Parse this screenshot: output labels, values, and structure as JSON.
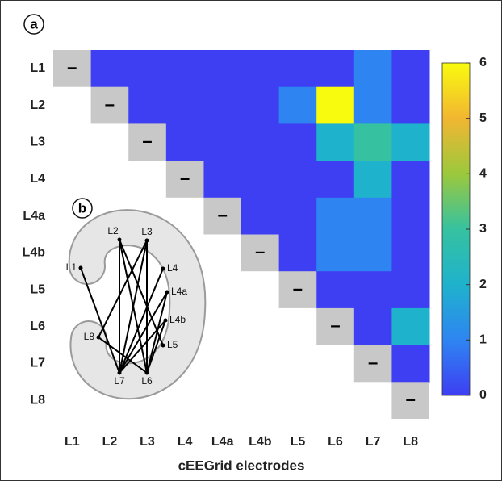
{
  "chart_data": {
    "type": "heatmap",
    "panel_label": "a",
    "inset_label": "b",
    "categories": [
      "L1",
      "L2",
      "L3",
      "L4",
      "L4a",
      "L4b",
      "L5",
      "L6",
      "L7",
      "L8"
    ],
    "xlabel": "cEEGrid electrodes",
    "diagonal_label": "–",
    "values": [
      [
        null,
        0,
        0,
        0,
        0,
        0,
        0,
        0,
        1,
        0
      ],
      [
        null,
        null,
        0,
        0,
        0,
        0,
        1,
        6,
        1,
        0
      ],
      [
        null,
        null,
        null,
        0,
        0,
        0,
        0,
        2,
        3,
        2
      ],
      [
        null,
        null,
        null,
        null,
        0,
        0,
        0,
        0,
        2,
        0
      ],
      [
        null,
        null,
        null,
        null,
        null,
        0,
        0,
        1,
        1,
        0
      ],
      [
        null,
        null,
        null,
        null,
        null,
        null,
        0,
        1,
        1,
        0
      ],
      [
        null,
        null,
        null,
        null,
        null,
        null,
        null,
        0,
        0,
        0
      ],
      [
        null,
        null,
        null,
        null,
        null,
        null,
        null,
        null,
        0,
        2
      ],
      [
        null,
        null,
        null,
        null,
        null,
        null,
        null,
        null,
        null,
        0
      ],
      [
        null,
        null,
        null,
        null,
        null,
        null,
        null,
        null,
        null,
        null
      ]
    ],
    "zlim": [
      0,
      6
    ],
    "zticks": [
      0,
      1,
      2,
      3,
      4,
      5,
      6
    ],
    "colormap": [
      "#3e3ef2",
      "#2e85f2",
      "#1fb2cc",
      "#36c2a0",
      "#9cc83c",
      "#f2b632",
      "#f9fb0e"
    ],
    "diagonal_color": "#c8c8c8"
  }
}
